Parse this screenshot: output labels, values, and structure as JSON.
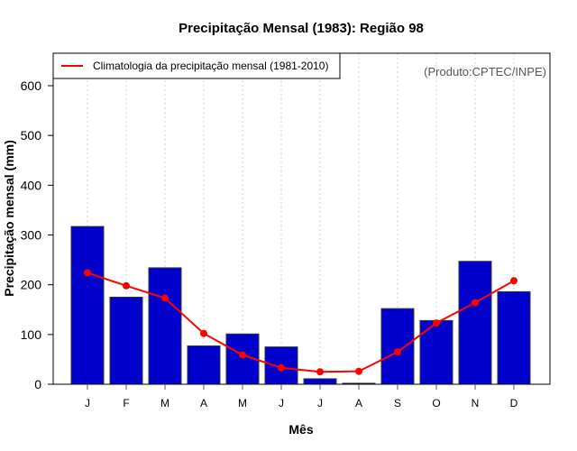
{
  "chart_data": {
    "type": "bar",
    "title": "Precipitação Mensal (1983): Região 98",
    "xlabel": "Mês",
    "ylabel": "Precipitação mensal (mm)",
    "categories": [
      "J",
      "F",
      "M",
      "A",
      "M",
      "J",
      "J",
      "A",
      "S",
      "O",
      "N",
      "D"
    ],
    "ylim": [
      0,
      660
    ],
    "yticks": [
      0,
      100,
      200,
      300,
      400,
      500,
      600
    ],
    "grid": "vertical-dotted",
    "series": [
      {
        "name": "Precipitação mensal 1983",
        "kind": "bar",
        "color": "#0000CD",
        "values": [
          317,
          175,
          234,
          77,
          101,
          75,
          11,
          2,
          152,
          128,
          247,
          186
        ]
      },
      {
        "name": "Climatologia da precipitação mensal (1981-2010)",
        "kind": "line",
        "color": "#FF0000",
        "values": [
          224,
          198,
          173,
          102,
          59,
          33,
          25,
          26,
          65,
          123,
          164,
          208
        ]
      }
    ],
    "legend": {
      "position": "top-left",
      "entries": [
        "Climatologia da precipitação mensal (1981-2010)"
      ]
    },
    "annotation": "(Produto:CPTEC/INPE)"
  }
}
